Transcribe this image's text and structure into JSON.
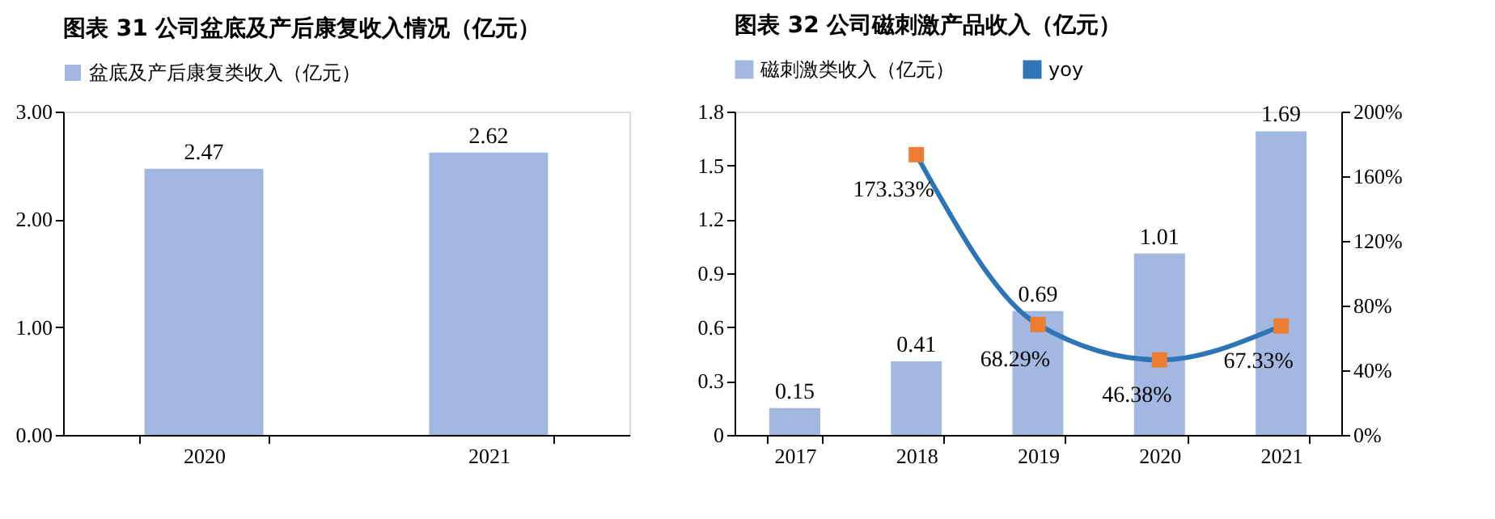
{
  "chart_data": [
    {
      "type": "bar",
      "title": "图表 31 公司盆底及产后康复收入情况（亿元）",
      "categories": [
        "2020",
        "2021"
      ],
      "series": [
        {
          "name": "盆底及产后康复类收入（亿元）",
          "color": "#a3b8e0",
          "values": [
            2.47,
            2.62
          ]
        }
      ],
      "ylim": [
        0,
        3
      ],
      "yticks": [
        {
          "value": 0,
          "label": "0.00"
        },
        {
          "value": 1,
          "label": "1.00"
        },
        {
          "value": 2,
          "label": "2.00"
        },
        {
          "value": 3,
          "label": "3.00"
        }
      ],
      "data_labels": true,
      "legend": "top",
      "grid": false
    },
    {
      "type": "bar",
      "title": "图表 32 公司磁刺激产品收入（亿元）",
      "categories": [
        "2017",
        "2018",
        "2019",
        "2020",
        "2021"
      ],
      "series": [
        {
          "name": "磁刺激类收入（亿元）",
          "color": "#a3b8e0",
          "values": [
            0.15,
            0.41,
            0.69,
            1.01,
            1.69
          ]
        },
        {
          "name": "yoy",
          "type": "line",
          "axis": "y2",
          "color": "#2e75b6",
          "colors": [
            null,
            "#ed7d31",
            "#ed7d31",
            "#ed7d31",
            "#ed7d31"
          ],
          "marker": "square",
          "values": [
            null,
            173.33,
            68.29,
            46.38,
            67.33
          ],
          "value_labels": [
            null,
            "173.33%",
            "68.29%",
            "46.38%",
            "67.33%"
          ]
        }
      ],
      "ylim": [
        0,
        1.8
      ],
      "yticks": [
        0,
        0.3,
        0.6,
        0.9,
        1.2,
        1.5,
        1.8
      ],
      "y2lim": [
        0,
        200
      ],
      "y2ticks": [
        {
          "value": 0,
          "label": "0%"
        },
        {
          "value": 40,
          "label": "40%"
        },
        {
          "value": 80,
          "label": "80%"
        },
        {
          "value": 120,
          "label": "120%"
        },
        {
          "value": 160,
          "label": "160%"
        },
        {
          "value": 200,
          "label": "200%"
        }
      ],
      "data_labels": true,
      "legend": "top",
      "grid": false
    }
  ]
}
